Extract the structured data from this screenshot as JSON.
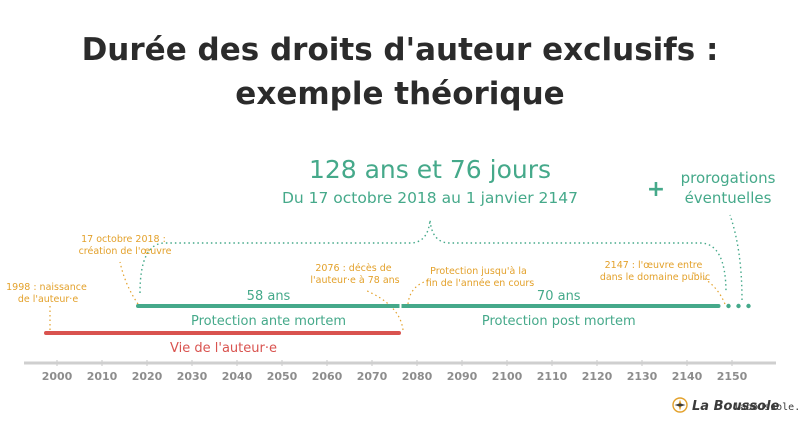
{
  "title": {
    "line1": "Durée des droits d'auteur exclusifs :",
    "line2": "exemple théorique"
  },
  "headline": {
    "duration": "128 ans et 76 jours",
    "range": "Du 17 octobre 2018 au 1 janvier 2147"
  },
  "extension": {
    "plus": "+",
    "line1": "prorogations",
    "line2": "éventuelles"
  },
  "annotations": {
    "birth": [
      "1998 : naissance",
      "de l'auteur·e"
    ],
    "creation": [
      "17 octobre 2018 :",
      "création de l'œuvre"
    ],
    "death": [
      "2076 : décès de",
      "l'auteur·e à 78 ans"
    ],
    "protection_end": [
      "Protection jusqu'à la",
      "fin de l'année en cours"
    ],
    "public_domain": [
      "2147 : l'œuvre entre",
      "dans le domaine public"
    ]
  },
  "bars": {
    "ante_years": "58 ans",
    "post_years": "70 ans",
    "ante_label": "Protection ante mortem",
    "post_label": "Protection post mortem",
    "life_label": "Vie de l'auteur·e"
  },
  "timeline": {
    "years": [
      2000,
      2010,
      2020,
      2030,
      2040,
      2050,
      2060,
      2070,
      2080,
      2090,
      2100,
      2110,
      2120,
      2130,
      2140,
      2150
    ],
    "min": 1995,
    "max": 2155,
    "birth_year": 1998,
    "creation_year": 2018,
    "death_year": 2076,
    "public_domain_year": 2147
  },
  "colors": {
    "green": "#45a98a",
    "red": "#d9534f",
    "orange": "#e3a12b",
    "axis": "#cfcfcf"
  },
  "logo": {
    "name": "La Boussole",
    "icon": "compass-icon",
    "url": "laboussole.coop"
  }
}
